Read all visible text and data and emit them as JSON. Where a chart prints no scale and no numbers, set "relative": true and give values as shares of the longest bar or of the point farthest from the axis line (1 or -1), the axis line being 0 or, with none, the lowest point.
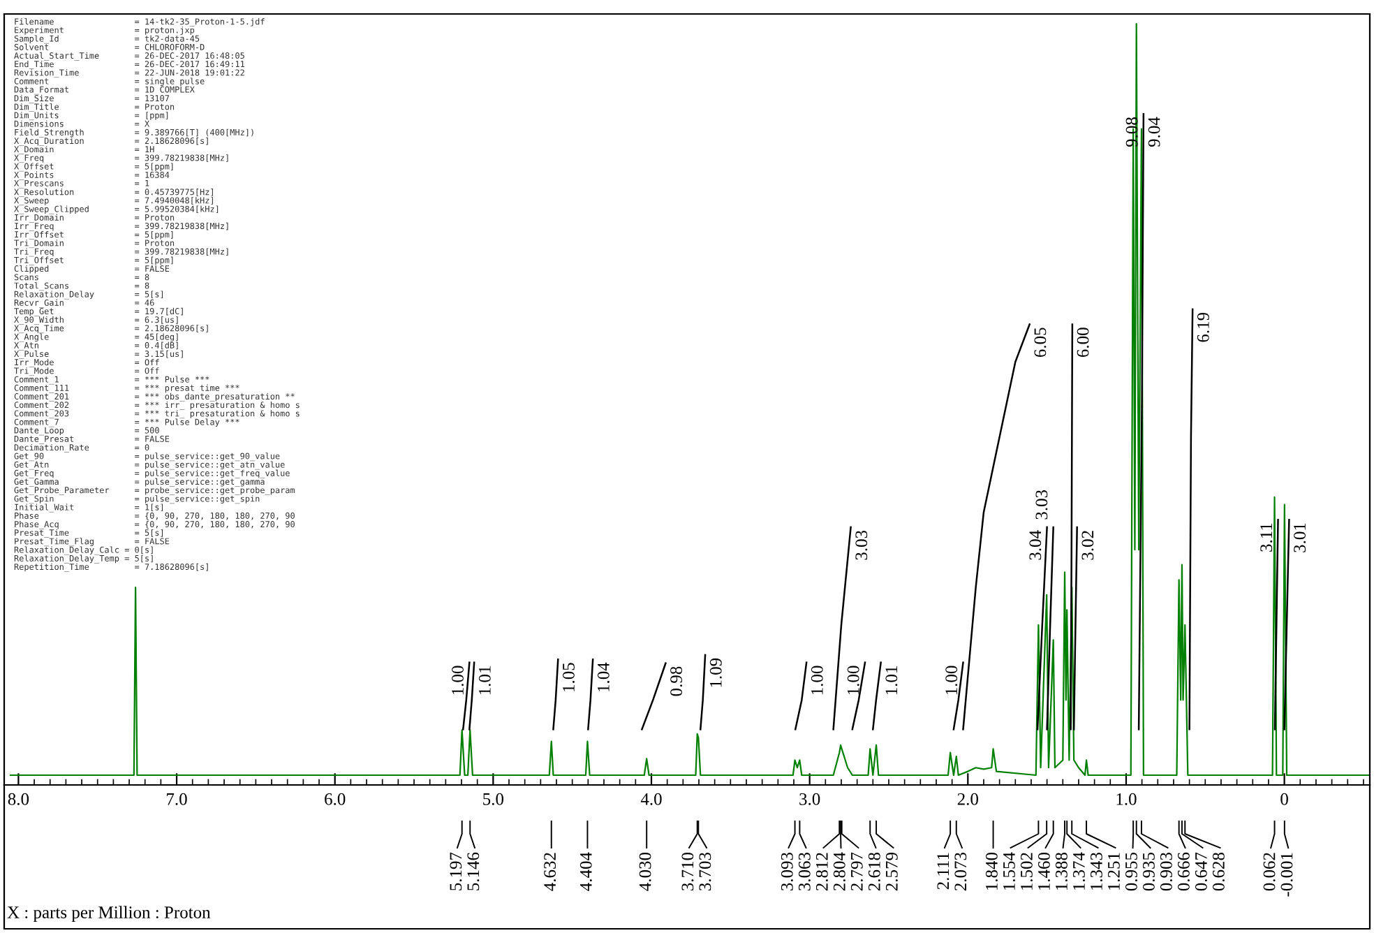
{
  "chart_data": {
    "type": "line",
    "relative": true,
    "xlim": [
      8.09,
      -0.54
    ],
    "xticks": [
      {
        "value": 8,
        "label": "8.0"
      },
      {
        "value": 7,
        "label": "7.0"
      },
      {
        "value": 6,
        "label": "6.0"
      },
      {
        "value": 5,
        "label": "5.0"
      },
      {
        "value": 4,
        "label": "4.0"
      },
      {
        "value": 3,
        "label": "3.0"
      },
      {
        "value": 2,
        "label": "2.0"
      },
      {
        "value": 1,
        "label": "1.0"
      },
      {
        "value": 0,
        "label": "0"
      }
    ],
    "grid": false,
    "legend": false,
    "marker": "none",
    "line_style": "solid",
    "series": [
      {
        "color": "#008000",
        "x": [
          8.05,
          7.27,
          7.26,
          7.25,
          5.21,
          5.197,
          5.18,
          5.16,
          5.146,
          5.13,
          4.645,
          4.632,
          4.62,
          4.415,
          4.404,
          4.39,
          4.045,
          4.03,
          4.015,
          3.72,
          3.71,
          3.703,
          3.69,
          3.105,
          3.093,
          3.078,
          3.063,
          3.05,
          2.85,
          2.812,
          2.804,
          2.797,
          2.76,
          2.73,
          2.63,
          2.618,
          2.6,
          2.579,
          2.565,
          2.125,
          2.111,
          2.09,
          2.073,
          2.06,
          2.0,
          1.95,
          1.9,
          1.85,
          1.84,
          1.82,
          1.57,
          1.554,
          1.54,
          1.502,
          1.49,
          1.46,
          1.45,
          1.4,
          1.388,
          1.38,
          1.374,
          1.36,
          1.343,
          1.33,
          1.3,
          1.26,
          1.251,
          1.24,
          0.97,
          0.955,
          0.945,
          0.935,
          0.92,
          0.903,
          0.89,
          0.68,
          0.666,
          0.655,
          0.647,
          0.64,
          0.628,
          0.61,
          0.075,
          0.062,
          0.05,
          0.01,
          -0.001,
          -0.015,
          -0.54
        ],
        "values": [
          0,
          0,
          0.25,
          0,
          0,
          0.06,
          0,
          0,
          0.06,
          0,
          0,
          0.045,
          0,
          0,
          0.045,
          0,
          0,
          0.022,
          0,
          0,
          0.055,
          0.05,
          0,
          0,
          0.02,
          0.01,
          0.02,
          0,
          0,
          0.03,
          0.04,
          0.035,
          0.01,
          0,
          0,
          0.035,
          0,
          0.04,
          0,
          0,
          0.03,
          0,
          0.025,
          0,
          0.005,
          0.01,
          0.008,
          0.01,
          0.035,
          0.005,
          0,
          0.2,
          0.01,
          0.24,
          0.01,
          0.18,
          0.01,
          0.02,
          0.27,
          0.1,
          0.22,
          0.02,
          0.25,
          0.02,
          0.01,
          0,
          0.02,
          0,
          0,
          0.86,
          0.3,
          1.0,
          0.3,
          0.86,
          0,
          0,
          0.26,
          0.1,
          0.28,
          0.1,
          0.2,
          0,
          0,
          0.37,
          0,
          0,
          0.36,
          0,
          0
        ]
      },
      {
        "color": "#000000",
        "x": [
          5.19,
          5.17,
          5.15
        ],
        "values": [
          0.061,
          0.1,
          0.15
        ]
      },
      {
        "color": "#000000",
        "x": [
          5.15,
          5.135,
          5.12
        ],
        "values": [
          0.061,
          0.1,
          0.15
        ]
      },
      {
        "color": "#000000",
        "x": [
          4.62,
          4.605,
          4.59
        ],
        "values": [
          0.061,
          0.1,
          0.154
        ]
      },
      {
        "color": "#000000",
        "x": [
          4.4,
          4.385,
          4.37
        ],
        "values": [
          0.061,
          0.1,
          0.154
        ]
      },
      {
        "color": "#000000",
        "x": [
          4.06,
          3.99,
          3.91
        ],
        "values": [
          0.061,
          0.1,
          0.149
        ]
      },
      {
        "color": "#000000",
        "x": [
          3.69,
          3.675,
          3.66
        ],
        "values": [
          0.061,
          0.1,
          0.16
        ]
      },
      {
        "color": "#000000",
        "x": [
          3.09,
          3.05,
          3.02
        ],
        "values": [
          0.061,
          0.1,
          0.15
        ]
      },
      {
        "color": "#000000",
        "x": [
          2.85,
          2.8,
          2.74
        ],
        "values": [
          0.061,
          0.2,
          0.33
        ]
      },
      {
        "color": "#000000",
        "x": [
          2.73,
          2.69,
          2.65
        ],
        "values": [
          0.061,
          0.1,
          0.15
        ]
      },
      {
        "color": "#000000",
        "x": [
          2.6,
          2.58,
          2.55
        ],
        "values": [
          0.061,
          0.1,
          0.15
        ]
      },
      {
        "color": "#000000",
        "x": [
          2.09,
          2.06,
          2.03
        ],
        "values": [
          0.061,
          0.1,
          0.15
        ]
      },
      {
        "color": "#000000",
        "x": [
          2.03,
          1.95,
          1.9,
          1.8,
          1.7,
          1.61
        ],
        "values": [
          0.061,
          0.25,
          0.35,
          0.45,
          0.55,
          0.6
        ]
      },
      {
        "color": "#000000",
        "x": [
          1.56,
          1.53,
          1.5
        ],
        "values": [
          0.061,
          0.2,
          0.33
        ]
      },
      {
        "color": "#000000",
        "x": [
          1.5,
          1.48,
          1.46
        ],
        "values": [
          0.061,
          0.2,
          0.33
        ]
      },
      {
        "color": "#000000",
        "x": [
          1.35,
          1.345,
          1.34
        ],
        "values": [
          0.061,
          0.3,
          0.6
        ]
      },
      {
        "color": "#000000",
        "x": [
          1.33,
          1.32,
          1.31
        ],
        "values": [
          0.061,
          0.2,
          0.33
        ]
      },
      {
        "color": "#000000",
        "x": [
          0.92,
          0.9,
          0.89
        ],
        "values": [
          0.061,
          0.5,
          0.88
        ]
      },
      {
        "color": "#000000",
        "x": [
          0.6,
          0.59,
          0.58
        ],
        "values": [
          0.061,
          0.45,
          0.62
        ]
      },
      {
        "color": "#000000",
        "x": [
          0.06,
          0.05,
          0.04
        ],
        "values": [
          0.061,
          0.2,
          0.34
        ]
      },
      {
        "color": "#000000",
        "x": [
          0.0,
          -0.015,
          -0.03
        ],
        "values": [
          0.061,
          0.2,
          0.34
        ]
      }
    ],
    "annotations": [
      "Filename                = 14-tk2-35_Proton-1-5.jdf",
      "Experiment              = proton.jxp",
      "Sample_Id               = tk2-data-45",
      "Solvent                 = CHLOROFORM-D",
      "Actual_Start_Time       = 26-DEC-2017 16:48:05",
      "End_Time                = 26-DEC-2017 16:49:11",
      "Revision_Time           = 22-JUN-2018 19:01:22",
      "Comment                 = single pulse",
      "Data_Format             = 1D COMPLEX",
      "Dim_Size                = 13107",
      "Dim_Title               = Proton",
      "Dim_Units               = [ppm]",
      "Dimensions              = X",
      "Field_Strength          = 9.389766[T] (400[MHz])",
      "X_Acq_Duration          = 2.18628096[s]",
      "X_Domain                = 1H",
      "X_Freq                  = 399.78219838[MHz]",
      "X_Offset                = 5[ppm]",
      "X_Points                = 16384",
      "X_Prescans              = 1",
      "X_Resolution            = 0.45739775[Hz]",
      "X_Sweep                 = 7.4940048[kHz]",
      "X_Sweep_Clipped         = 5.99520384[kHz]",
      "Irr_Domain              = Proton",
      "Irr_Freq                = 399.78219838[MHz]",
      "Irr_Offset              = 5[ppm]",
      "Tri_Domain              = Proton",
      "Tri_Freq                = 399.78219838[MHz]",
      "Tri_Offset              = 5[ppm]",
      "Clipped                 = FALSE",
      "Scans                   = 8",
      "Total_Scans             = 8",
      "Relaxation_Delay        = 5[s]",
      "Recvr_Gain              = 46",
      "Temp_Get                = 19.7[dC]",
      "X_90_Width              = 6.3[us]",
      "X_Acq_Time              = 2.18628096[s]",
      "X_Angle                 = 45[deg]",
      "X_Atn                   = 0.4[dB]",
      "X_Pulse                 = 3.15[us]",
      "Irr_Mode                = Off",
      "Tri_Mode                = Off",
      "Comment_1               = *** Pulse ***",
      "Comment_111             = *** presat time ***",
      "Comment_201             = *** obs_dante_presaturation **",
      "Comment_202             = *** irr_ presaturation & homo s",
      "Comment_203             = *** tri_ presaturation & homo s",
      "Comment_7               = *** Pulse Delay ***",
      "Dante_Loop              = 500",
      "Dante_Presat            = FALSE",
      "Decimation_Rate         = 0",
      "Get_90                  = pulse_service::get_90_value",
      "Get_Atn                 = pulse_service::get_atn_value",
      "Get_Freq                = pulse_service::get_freq_value",
      "Get_Gamma               = pulse_service::get_gamma",
      "Get_Probe_Parameter     = probe_service::get_probe_param",
      "Get_Spin                = pulse_service::get_spin",
      "Initial_Wait            = 1[s]",
      "Phase                   = {0, 90, 270, 180, 180, 270, 90",
      "Phase_Acq               = {0, 90, 270, 180, 180, 270, 90",
      "Presat_Time             = 5[s]",
      "Presat_Time_Flag        = FALSE",
      "Relaxation_Delay_Calc = 0[s]",
      "Relaxation_Delay_Temp = 5[s]",
      "Repetition_Time         = 7.18628096[s]",
      {
        "text": "X : parts per Million : Proton"
      },
      {
        "text": "1.00",
        "x": 5.15,
        "y": 0.15
      },
      {
        "text": "1.01",
        "x": 5.12,
        "y": 0.15
      },
      {
        "text": "1.05",
        "x": 4.59,
        "y": 0.154
      },
      {
        "text": "1.04",
        "x": 4.37,
        "y": 0.154
      },
      {
        "text": "0.98",
        "x": 3.91,
        "y": 0.149
      },
      {
        "text": "1.09",
        "x": 3.66,
        "y": 0.16
      },
      {
        "text": "1.00",
        "x": 3.02,
        "y": 0.15
      },
      {
        "text": "3.03",
        "x": 2.74,
        "y": 0.33
      },
      {
        "text": "1.00",
        "x": 2.65,
        "y": 0.15
      },
      {
        "text": "1.01",
        "x": 2.55,
        "y": 0.15
      },
      {
        "text": "1.00",
        "x": 2.03,
        "y": 0.15
      },
      {
        "text": "6.05",
        "x": 1.61,
        "y": 0.6
      },
      {
        "text": "3.04",
        "x": 1.5,
        "y": 0.33
      },
      {
        "text": "3.03",
        "x": 1.46,
        "y": 0.33
      },
      {
        "text": "6.00",
        "x": 1.34,
        "y": 0.6
      },
      {
        "text": "3.02",
        "x": 1.31,
        "y": 0.33
      },
      {
        "text": "9.04",
        "x": 0.89,
        "y": 0.88
      },
      {
        "text": "9.08",
        "x": 0.89,
        "y": 0.88
      },
      {
        "text": "6.19",
        "x": 0.58,
        "y": 0.62
      },
      {
        "text": "3.11",
        "x": 0.04,
        "y": 0.34
      },
      {
        "text": "3.01",
        "x": -0.03,
        "y": 0.34
      },
      {
        "text": "5.197",
        "x": 5.197
      },
      {
        "text": "5.146",
        "x": 5.146
      },
      {
        "text": "4.632",
        "x": 4.632
      },
      {
        "text": "4.404",
        "x": 4.404
      },
      {
        "text": "4.030",
        "x": 4.03
      },
      {
        "text": "3.710",
        "x": 3.71
      },
      {
        "text": "3.703",
        "x": 3.703
      },
      {
        "text": "3.093",
        "x": 3.093
      },
      {
        "text": "3.063",
        "x": 3.063
      },
      {
        "text": "2.812",
        "x": 2.812
      },
      {
        "text": "2.804",
        "x": 2.804
      },
      {
        "text": "2.797",
        "x": 2.797
      },
      {
        "text": "2.618",
        "x": 2.618
      },
      {
        "text": "2.579",
        "x": 2.579
      },
      {
        "text": "2.111",
        "x": 2.111
      },
      {
        "text": "2.073",
        "x": 2.073
      },
      {
        "text": "1.840",
        "x": 1.84
      },
      {
        "text": "1.554",
        "x": 1.554
      },
      {
        "text": "1.502",
        "x": 1.502
      },
      {
        "text": "1.460",
        "x": 1.46
      },
      {
        "text": "1.388",
        "x": 1.388
      },
      {
        "text": "1.374",
        "x": 1.374
      },
      {
        "text": "1.343",
        "x": 1.343
      },
      {
        "text": "1.251",
        "x": 1.251
      },
      {
        "text": "0.955",
        "x": 0.955
      },
      {
        "text": "0.935",
        "x": 0.935
      },
      {
        "text": "0.903",
        "x": 0.903
      },
      {
        "text": "0.666",
        "x": 0.666
      },
      {
        "text": "0.647",
        "x": 0.647
      },
      {
        "text": "0.628",
        "x": 0.628
      },
      {
        "text": "0.062",
        "x": 0.062
      },
      {
        "text": "-0.001",
        "x": -0.001
      }
    ]
  }
}
